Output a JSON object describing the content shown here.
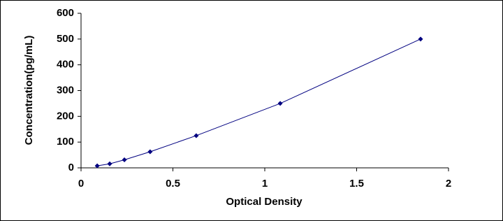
{
  "chart_data": {
    "type": "scatter",
    "x_label": "Optical Density",
    "y_label": "Concentration(pg/mL)",
    "series": [
      {
        "color": "#000080",
        "x": [
          0.088,
          0.156,
          0.236,
          0.376,
          0.627,
          1.084,
          1.848
        ],
        "values": [
          7.8,
          15.6,
          31.25,
          62.5,
          125,
          250,
          500
        ]
      }
    ],
    "xlim": [
      0,
      2
    ],
    "xticks": [
      0,
      0.5,
      1,
      1.5,
      2
    ],
    "ylim": [
      0,
      600
    ],
    "yticks": [
      0,
      100,
      200,
      300,
      400,
      500,
      600
    ],
    "grid": false,
    "fit_line": true
  }
}
